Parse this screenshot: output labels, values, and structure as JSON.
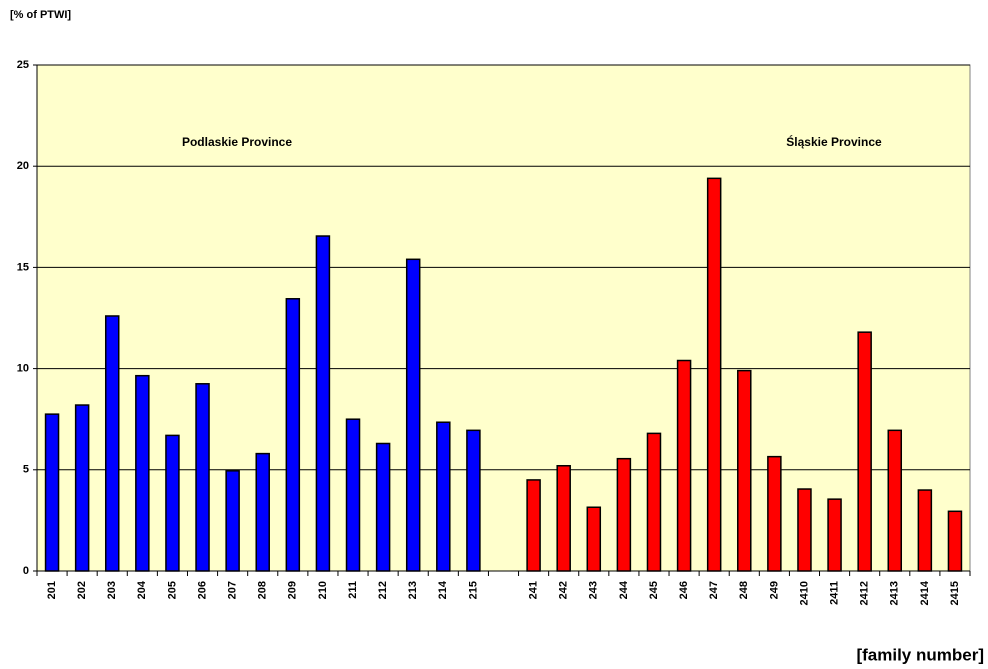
{
  "chart_data": {
    "type": "bar",
    "y_axis_label": "[% of PTWI]",
    "x_axis_label": "[family number]",
    "categories": [
      "201",
      "202",
      "203",
      "204",
      "205",
      "206",
      "207",
      "208",
      "209",
      "210",
      "211",
      "212",
      "213",
      "214",
      "215",
      null,
      "241",
      "242",
      "243",
      "244",
      "245",
      "246",
      "247",
      "248",
      "249",
      "2410",
      "2411",
      "2412",
      "2413",
      "2414",
      "2415"
    ],
    "series": [
      {
        "name": "Podlaskie Province",
        "color": "#0000ff",
        "values": [
          7.75,
          8.2,
          12.6,
          9.65,
          6.7,
          9.25,
          4.95,
          5.8,
          13.45,
          16.55,
          7.5,
          6.3,
          15.4,
          7.35,
          6.95,
          null,
          null,
          null,
          null,
          null,
          null,
          null,
          null,
          null,
          null,
          null,
          null,
          null,
          null,
          null,
          null
        ]
      },
      {
        "name": "Śląskie Province",
        "color": "#ff0000",
        "values": [
          null,
          null,
          null,
          null,
          null,
          null,
          null,
          null,
          null,
          null,
          null,
          null,
          null,
          null,
          null,
          null,
          4.5,
          5.2,
          3.15,
          5.55,
          6.8,
          10.4,
          19.4,
          9.9,
          5.65,
          4.05,
          3.55,
          11.8,
          6.95,
          4.0,
          2.95
        ]
      }
    ],
    "ylim": [
      0,
      25
    ],
    "yticks": [
      0,
      5,
      10,
      15,
      20,
      25
    ],
    "grid": true,
    "background": "#ffffcc"
  }
}
